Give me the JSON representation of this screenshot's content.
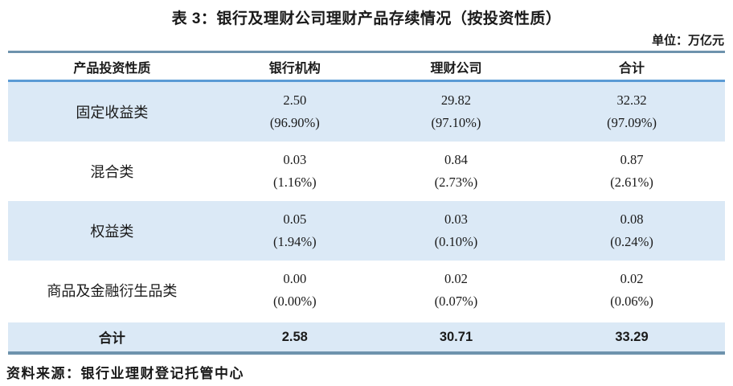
{
  "title": "表 3：银行及理财公司理财产品存续情况（按投资性质）",
  "unit_label": "单位：万亿元",
  "table": {
    "columns": [
      "产品投资性质",
      "银行机构",
      "理财公司",
      "合计"
    ],
    "rows": [
      {
        "label": "固定收益类",
        "cells": [
          {
            "value": "2.50",
            "pct": "(96.90%)"
          },
          {
            "value": "29.82",
            "pct": "(97.10%)"
          },
          {
            "value": "32.32",
            "pct": "(97.09%)"
          }
        ]
      },
      {
        "label": "混合类",
        "cells": [
          {
            "value": "0.03",
            "pct": "(1.16%)"
          },
          {
            "value": "0.84",
            "pct": "(2.73%)"
          },
          {
            "value": "0.87",
            "pct": "(2.61%)"
          }
        ]
      },
      {
        "label": "权益类",
        "cells": [
          {
            "value": "0.05",
            "pct": "(1.94%)"
          },
          {
            "value": "0.03",
            "pct": "(0.10%)"
          },
          {
            "value": "0.08",
            "pct": "(0.24%)"
          }
        ]
      },
      {
        "label": "商品及金融衍生品类",
        "cells": [
          {
            "value": "0.00",
            "pct": "(0.00%)"
          },
          {
            "value": "0.02",
            "pct": "(0.07%)"
          },
          {
            "value": "0.02",
            "pct": "(0.06%)"
          }
        ]
      }
    ],
    "total_row": {
      "label": "合计",
      "values": [
        "2.58",
        "30.71",
        "33.29"
      ]
    }
  },
  "source": "资料来源：银行业理财登记托管中心",
  "colors": {
    "row_highlight": "#dbe9f6",
    "border_outer": "#6e93ad",
    "border_header": "#5b9bd5",
    "text_main": "#1a1a1a"
  }
}
